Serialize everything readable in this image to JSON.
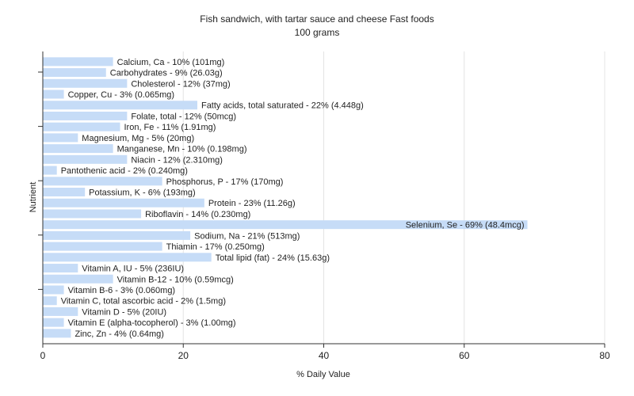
{
  "chart_data": {
    "type": "bar",
    "orientation": "horizontal",
    "title": "Fish sandwich, with tartar sauce and cheese Fast foods",
    "subtitle": "100 grams",
    "xlabel": "% Daily Value",
    "ylabel": "Nutrient",
    "xlim": [
      0,
      80
    ],
    "xticks": [
      "0",
      "20",
      "40",
      "60",
      "80"
    ],
    "grid": true,
    "bar_color": "#c6dcf7",
    "categories": [
      "Calcium, Ca",
      "Carbohydrates",
      "Cholesterol",
      "Copper, Cu",
      "Fatty acids, total saturated",
      "Folate, total",
      "Iron, Fe",
      "Magnesium, Mg",
      "Manganese, Mn",
      "Niacin",
      "Pantothenic acid",
      "Phosphorus, P",
      "Potassium, K",
      "Protein",
      "Riboflavin",
      "Selenium, Se",
      "Sodium, Na",
      "Thiamin",
      "Total lipid (fat)",
      "Vitamin A, IU",
      "Vitamin B-12",
      "Vitamin B-6",
      "Vitamin C, total ascorbic acid",
      "Vitamin D",
      "Vitamin E (alpha-tocopherol)",
      "Zinc, Zn"
    ],
    "values": [
      10,
      9,
      12,
      3,
      22,
      12,
      11,
      5,
      10,
      12,
      2,
      17,
      6,
      23,
      14,
      69,
      21,
      17,
      24,
      5,
      10,
      3,
      2,
      5,
      3,
      4
    ],
    "labels": [
      "Calcium, Ca - 10% (101mg)",
      "Carbohydrates - 9% (26.03g)",
      "Cholesterol - 12% (37mg)",
      "Copper, Cu - 3% (0.065mg)",
      "Fatty acids, total saturated - 22% (4.448g)",
      "Folate, total - 12% (50mcg)",
      "Iron, Fe - 11% (1.91mg)",
      "Magnesium, Mg - 5% (20mg)",
      "Manganese, Mn - 10% (0.198mg)",
      "Niacin - 12% (2.310mg)",
      "Pantothenic acid - 2% (0.240mg)",
      "Phosphorus, P - 17% (170mg)",
      "Potassium, K - 6% (193mg)",
      "Protein - 23% (11.26g)",
      "Riboflavin - 14% (0.230mg)",
      "Selenium, Se - 69% (48.4mcg)",
      "Sodium, Na - 21% (513mg)",
      "Thiamin - 17% (0.250mg)",
      "Total lipid (fat) - 24% (15.63g)",
      "Vitamin A, IU - 5% (236IU)",
      "Vitamin B-12 - 10% (0.59mcg)",
      "Vitamin B-6 - 3% (0.060mg)",
      "Vitamin C, total ascorbic acid - 2% (1.5mg)",
      "Vitamin D - 5% (20IU)",
      "Vitamin E (alpha-tocopherol) - 3% (1.00mg)",
      "Zinc, Zn - 4% (0.64mg)"
    ]
  }
}
